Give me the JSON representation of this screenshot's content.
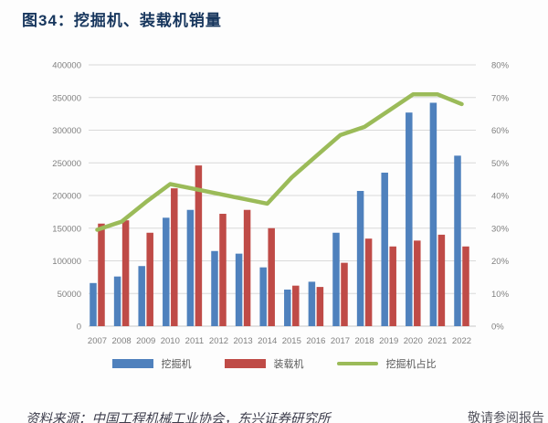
{
  "title": "图34：挖掘机、装载机销量",
  "colors": {
    "title_text": "#17365d",
    "excavator_bar": "#4f81bd",
    "loader_bar": "#bf4b47",
    "ratio_line": "#9bbb59",
    "gridline": "#d9d9d9",
    "axis_line": "#c6c6c6",
    "axis_text": "#808080",
    "legend_text": "#595959"
  },
  "chart_data": {
    "type": "bar",
    "subtype": "grouped bars with secondary-axis line",
    "categories": [
      "2007",
      "2008",
      "2009",
      "2010",
      "2011",
      "2012",
      "2013",
      "2014",
      "2015",
      "2016",
      "2017",
      "2018",
      "2019",
      "2020",
      "2021",
      "2022"
    ],
    "series": [
      {
        "name": "挖掘机",
        "type": "bar",
        "axis": "left",
        "color": "#4f81bd",
        "values": [
          66000,
          76000,
          92000,
          166000,
          178000,
          115000,
          111000,
          90000,
          56000,
          68000,
          143000,
          207000,
          235000,
          327000,
          342000,
          261000
        ]
      },
      {
        "name": "装载机",
        "type": "bar",
        "axis": "left",
        "color": "#bf4b47",
        "values": [
          157000,
          162000,
          143000,
          211000,
          246000,
          172000,
          178000,
          150000,
          62000,
          60000,
          97000,
          134000,
          122000,
          131000,
          140000,
          122000
        ]
      },
      {
        "name": "挖掘机占比",
        "type": "line",
        "axis": "right",
        "unit": "%",
        "color": "#9bbb59",
        "values": [
          29.5,
          32,
          38,
          43.5,
          42,
          40.5,
          39,
          37.5,
          45.5,
          52,
          58.5,
          61,
          66,
          71,
          71,
          68
        ]
      }
    ],
    "left_axis": {
      "min": 0,
      "max": 400000,
      "step": 50000,
      "tick_labels": [
        "400000",
        "350000",
        "300000",
        "250000",
        "200000",
        "150000",
        "100000",
        "50000",
        "0"
      ]
    },
    "right_axis": {
      "min": 0,
      "max": 80,
      "step": 10,
      "tick_labels": [
        "80%",
        "70%",
        "60%",
        "50%",
        "40%",
        "30%",
        "20%",
        "10%",
        "0%"
      ]
    },
    "grid": true,
    "legend_position": "bottom",
    "legend": [
      "挖掘机",
      "装载机",
      "挖掘机占比"
    ]
  },
  "footer": {
    "source_text": "资料来源：中国工程机械工业协会，东兴证券研究所",
    "right_fragment": "敬请参阅报告"
  }
}
